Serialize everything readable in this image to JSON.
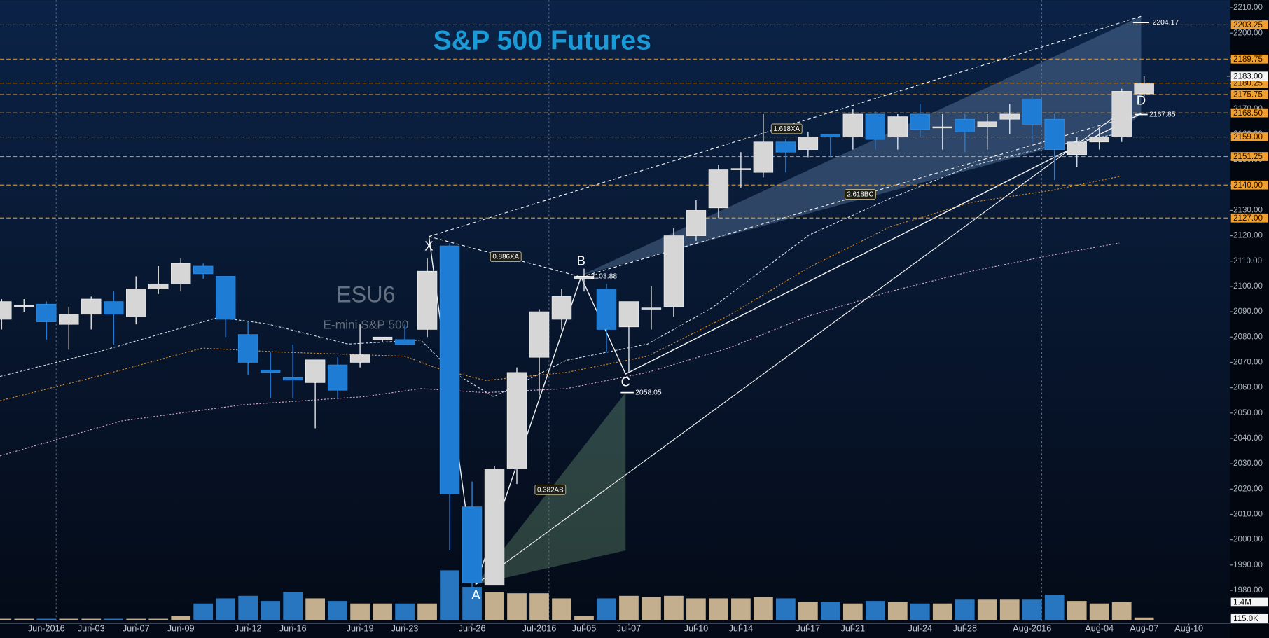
{
  "chart_data": {
    "type": "candlestick",
    "title": "S&P 500 Futures",
    "watermark": "ESU6",
    "watermark_subtitle": "E-mini S&P 500",
    "categories": [
      null,
      null,
      "Jun-2016",
      null,
      "Jun-03",
      null,
      "Jun-07",
      null,
      "Jun-09",
      null,
      null,
      "Jun-12",
      null,
      "Jun-16",
      null,
      null,
      "Jun-19",
      null,
      "Jun-23",
      null,
      null,
      "Jun-26",
      null,
      null,
      "Jul-2016",
      null,
      "Jul-05",
      null,
      "Jul-07",
      null,
      null,
      "Jul-10",
      null,
      "Jul-14",
      null,
      null,
      "Jul-17",
      null,
      "Jul-21",
      null,
      null,
      "Jul-24",
      null,
      "Jul-28",
      null,
      null,
      "Aug-2016",
      null,
      null,
      "Aug-04",
      null,
      "Aug-07",
      null,
      "Aug-10"
    ],
    "open": [
      2087,
      2092,
      2093,
      2085,
      2089,
      2094,
      2088,
      2099,
      2101,
      2108,
      2104,
      2081,
      2067,
      2064,
      2062,
      2069,
      2070,
      2079,
      2079,
      2083,
      2116,
      2013,
      1982,
      2028,
      2072,
      2087,
      2103,
      2099,
      2084,
      2091,
      2092,
      2120,
      2131,
      2146,
      2145,
      2157,
      2154,
      2160,
      2159,
      2168,
      2159,
      2168,
      2163,
      2166,
      2163,
      2166,
      2174,
      2166,
      2152,
      2157,
      2159,
      2176,
      null,
      null
    ],
    "high": [
      2095,
      2095,
      2094,
      2092,
      2096,
      2098,
      2104,
      2108,
      2111,
      2109,
      2104,
      2086,
      2074,
      2077,
      2071,
      2072,
      2085,
      2080,
      2085,
      2111,
      2117,
      2023,
      2029,
      2068,
      2091,
      2099,
      2107,
      2101,
      2094,
      2100,
      2123,
      2134,
      2148,
      2153,
      2168,
      2158,
      2161,
      2160,
      2170,
      2169,
      2168,
      2172,
      2168,
      2168,
      2168,
      2172,
      2175,
      2168,
      2159,
      2163,
      2178,
      2183,
      null,
      null
    ],
    "low": [
      2083,
      2090,
      2079,
      2075,
      2083,
      2077,
      2085,
      2097,
      2098,
      2103,
      2080,
      2065,
      2056,
      2056,
      2044,
      2056,
      2068,
      2078,
      2077,
      2080,
      1996,
      1980,
      1982,
      2022,
      2057,
      2083,
      2098,
      2074,
      2066,
      2083,
      2088,
      2118,
      2127,
      2139,
      2143,
      2145,
      2151,
      2151,
      2154,
      2154,
      2154,
      2159,
      2154,
      2153,
      2154,
      2160,
      2157,
      2142,
      2147,
      2154,
      2157,
      2175,
      null,
      null
    ],
    "close": [
      2094,
      2092.5,
      2086,
      2089,
      2095,
      2089,
      2099,
      2101,
      2109,
      2105,
      2087,
      2070,
      2066,
      2063,
      2071,
      2059,
      2073,
      2080,
      2077,
      2106,
      2018,
      1983,
      2028,
      2066,
      2090,
      2096,
      2104,
      2083,
      2094,
      2091.5,
      2120,
      2130,
      2146,
      2146.5,
      2157,
      2153,
      2159,
      2159,
      2168,
      2158,
      2167,
      2162,
      2163,
      2161,
      2165,
      2168,
      2164,
      2154,
      2157,
      2159,
      2177,
      2180,
      null,
      null
    ],
    "volume": [
      100000,
      100000,
      100000,
      100000,
      100000,
      100000,
      100000,
      100000,
      300000,
      1300000,
      1700000,
      1900000,
      1500000,
      2200000,
      1700000,
      1500000,
      1300000,
      1300000,
      1300000,
      1300000,
      3900000,
      2600000,
      2200000,
      2100000,
      2100000,
      1700000,
      300000,
      1700000,
      1900000,
      1800000,
      1900000,
      1700000,
      1700000,
      1700000,
      1800000,
      1700000,
      1400000,
      1400000,
      1300000,
      1500000,
      1400000,
      1300000,
      1300000,
      1600000,
      1600000,
      1600000,
      1600000,
      2000000,
      1500000,
      1300000,
      1400000,
      200000,
      null,
      null
    ],
    "up_color": "#d6d6d6",
    "down_color": "#1f7cd4",
    "up_volume_color": "#d8c09a",
    "down_volume_color": "#2b82d2",
    "ylim": [
      1967,
      2213
    ],
    "yticks": [
      {
        "value": 2210,
        "label": "2210.00"
      },
      {
        "value": 2200,
        "label": "2200.00"
      },
      {
        "value": 2190,
        "label": "2190.00"
      },
      {
        "value": 2180,
        "label": "2180.00"
      },
      {
        "value": 2170,
        "label": "2170.00"
      },
      {
        "value": 2160,
        "label": "2160.00"
      },
      {
        "value": 2150,
        "label": "2150.00"
      },
      {
        "value": 2140,
        "label": "2140.00"
      },
      {
        "value": 2130,
        "label": "2130.00"
      },
      {
        "value": 2120,
        "label": "2120.00"
      },
      {
        "value": 2110,
        "label": "2110.00"
      },
      {
        "value": 2100,
        "label": "2100.00"
      },
      {
        "value": 2090,
        "label": "2090.00"
      },
      {
        "value": 2080,
        "label": "2080.00"
      },
      {
        "value": 2070,
        "label": "2070.00"
      },
      {
        "value": 2060,
        "label": "2060.00"
      },
      {
        "value": 2050,
        "label": "2050.00"
      },
      {
        "value": 2040,
        "label": "2040.00"
      },
      {
        "value": 2030,
        "label": "2030.00"
      },
      {
        "value": 2020,
        "label": "2020.00"
      },
      {
        "value": 2010,
        "label": "2010.00"
      },
      {
        "value": 2000,
        "label": "2000.00"
      },
      {
        "value": 1990,
        "label": "1990.00"
      },
      {
        "value": 1980,
        "label": "1980.00"
      }
    ],
    "volume_lim": [
      0,
      4000000
    ],
    "volume_ticks": [
      {
        "value": 1400000,
        "label": "1.4M"
      },
      {
        "value": 115000,
        "label": "115.0K"
      }
    ],
    "levels": [
      2203.25,
      2189.75,
      2180.25,
      2175.75,
      {
        "value": 2168.5,
        "label": "2168.50"
      },
      {
        "value": 2159,
        "label": "2159.00"
      },
      2151.25,
      {
        "value": 2140,
        "label": "2140.00"
      },
      {
        "value": 2127,
        "label": "2127.00"
      }
    ],
    "level_color": "#f0a030",
    "current_price": {
      "value": 2183,
      "label": "2183.00"
    },
    "pattern": [
      {
        "name": "X"
      },
      {
        "name": "A"
      },
      {
        "name": "B",
        "price": 2103.88
      },
      {
        "name": "C",
        "price": 2058.05
      },
      {
        "name": "D",
        "price": 2167.85
      }
    ],
    "target_price": 2204.17,
    "ratio_labels": [
      "0.886XA",
      "1.618XA",
      "0.382AB",
      "2.618BC"
    ]
  }
}
